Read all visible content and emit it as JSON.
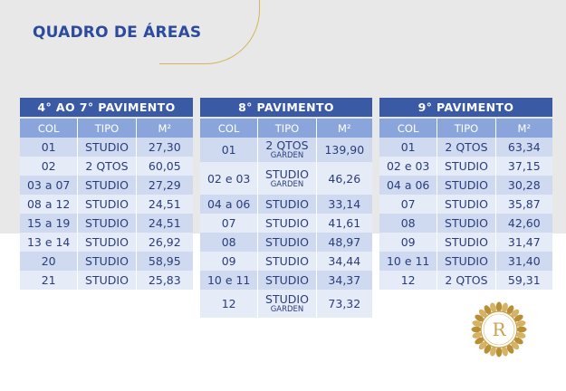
{
  "title": "QUADRO DE ÁREAS",
  "columns": {
    "col": "COL",
    "tipo": "TIPO",
    "m2": "M²"
  },
  "tables": [
    {
      "heading": "4° AO 7° PAVIMENTO",
      "rows": [
        {
          "col": "01",
          "tipo": "STUDIO",
          "sub": "",
          "m2": "27,30"
        },
        {
          "col": "02",
          "tipo": "2 QTOS",
          "sub": "",
          "m2": "60,05"
        },
        {
          "col": "03 a 07",
          "tipo": "STUDIO",
          "sub": "",
          "m2": "27,29"
        },
        {
          "col": "08 a 12",
          "tipo": "STUDIO",
          "sub": "",
          "m2": "24,51"
        },
        {
          "col": "15 a 19",
          "tipo": "STUDIO",
          "sub": "",
          "m2": "24,51"
        },
        {
          "col": "13 e 14",
          "tipo": "STUDIO",
          "sub": "",
          "m2": "26,92"
        },
        {
          "col": "20",
          "tipo": "STUDIO",
          "sub": "",
          "m2": "58,95"
        },
        {
          "col": "21",
          "tipo": "STUDIO",
          "sub": "",
          "m2": "25,83"
        }
      ]
    },
    {
      "heading": "8° PAVIMENTO",
      "rows": [
        {
          "col": "01",
          "tipo": "2 QTOS",
          "sub": "GARDEN",
          "m2": "139,90"
        },
        {
          "col": "02 e 03",
          "tipo": "STUDIO",
          "sub": "GARDEN",
          "m2": "46,26"
        },
        {
          "col": "04 a 06",
          "tipo": "STUDIO",
          "sub": "",
          "m2": "33,14"
        },
        {
          "col": "07",
          "tipo": "STUDIO",
          "sub": "",
          "m2": "41,61"
        },
        {
          "col": "08",
          "tipo": "STUDIO",
          "sub": "",
          "m2": "48,97"
        },
        {
          "col": "09",
          "tipo": "STUDIO",
          "sub": "",
          "m2": "34,44"
        },
        {
          "col": "10 e 11",
          "tipo": "STUDIO",
          "sub": "",
          "m2": "34,37"
        },
        {
          "col": "12",
          "tipo": "STUDIO",
          "sub": "GARDEN",
          "m2": "73,32"
        }
      ]
    },
    {
      "heading": "9° PAVIMENTO",
      "rows": [
        {
          "col": "01",
          "tipo": "2 QTOS",
          "sub": "",
          "m2": "63,34"
        },
        {
          "col": "02 e 03",
          "tipo": "STUDIO",
          "sub": "",
          "m2": "37,15"
        },
        {
          "col": "04 a 06",
          "tipo": "STUDIO",
          "sub": "",
          "m2": "30,28"
        },
        {
          "col": "07",
          "tipo": "STUDIO",
          "sub": "",
          "m2": "35,87"
        },
        {
          "col": "08",
          "tipo": "STUDIO",
          "sub": "",
          "m2": "42,60"
        },
        {
          "col": "09",
          "tipo": "STUDIO",
          "sub": "",
          "m2": "31,47"
        },
        {
          "col": "10 e 11",
          "tipo": "STUDIO",
          "sub": "",
          "m2": "31,40"
        },
        {
          "col": "12",
          "tipo": "2 QTOS",
          "sub": "",
          "m2": "59,31"
        }
      ]
    }
  ],
  "logo": {
    "letter": "R"
  },
  "colors": {
    "heading": "#3b5aa6",
    "subheader": "#8aa5db",
    "row_a": "#cfdaf1",
    "row_b": "#e5ebf7",
    "title": "#2c4a9e",
    "gold": "#c9a24a"
  }
}
